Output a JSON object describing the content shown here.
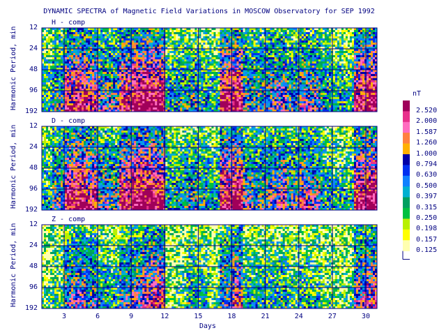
{
  "title": "DYNAMIC SPECTRA of Magnetic Field Variations in MOSCOW Observatory for SEP 1992",
  "chart_data": {
    "type": "heatmap",
    "xlabel": "Days",
    "ylabel": "Harmonic Period, min",
    "x_ticks": [
      "3",
      "6",
      "9",
      "12",
      "15",
      "18",
      "21",
      "24",
      "27",
      "30"
    ],
    "x_tick_values": [
      3,
      6,
      9,
      12,
      15,
      18,
      21,
      24,
      27,
      30
    ],
    "xlim": [
      1,
      31
    ],
    "y_ticks": [
      "12",
      "24",
      "48",
      "96",
      "192"
    ],
    "y_tick_values": [
      12,
      24,
      48,
      96,
      192
    ],
    "ylim": [
      12,
      192
    ],
    "y_scale": "log",
    "grid": true,
    "panels": [
      {
        "label": "H - comp"
      },
      {
        "label": "D - comp"
      },
      {
        "label": "Z - comp"
      }
    ],
    "colorbar": {
      "unit": "nT",
      "levels": [
        "2.520",
        "2.000",
        "1.587",
        "1.260",
        "1.000",
        "0.794",
        "0.630",
        "0.500",
        "0.397",
        "0.315",
        "0.250",
        "0.198",
        "0.157",
        "0.125"
      ],
      "colors": [
        "#a0005a",
        "#e8308c",
        "#ff6cc0",
        "#ff8040",
        "#ffb000",
        "#0000a8",
        "#0030f0",
        "#1080ff",
        "#00b0d0",
        "#00a060",
        "#00c040",
        "#b8f000",
        "#ffff00",
        "#ffffb0"
      ]
    },
    "day_activity": {
      "H - comp": [
        0.3,
        0.45,
        0.8,
        0.85,
        0.75,
        0.55,
        0.5,
        0.8,
        0.9,
        0.95,
        0.9,
        0.35,
        0.4,
        0.45,
        0.35,
        0.3,
        0.85,
        0.9,
        0.5,
        0.5,
        0.55,
        0.6,
        0.45,
        0.6,
        0.55,
        0.4,
        0.35,
        0.3,
        0.85,
        0.9,
        0.7
      ],
      "D - comp": [
        0.3,
        0.5,
        0.85,
        0.9,
        0.8,
        0.55,
        0.5,
        0.85,
        0.95,
        0.95,
        0.9,
        0.35,
        0.4,
        0.45,
        0.4,
        0.35,
        0.85,
        0.95,
        0.55,
        0.5,
        0.55,
        0.65,
        0.5,
        0.65,
        0.55,
        0.35,
        0.3,
        0.3,
        0.85,
        0.95,
        0.7
      ],
      "Z - comp": [
        0.15,
        0.25,
        0.55,
        0.6,
        0.5,
        0.35,
        0.3,
        0.5,
        0.55,
        0.7,
        0.75,
        0.15,
        0.2,
        0.35,
        0.3,
        0.2,
        0.55,
        0.7,
        0.3,
        0.3,
        0.3,
        0.35,
        0.25,
        0.3,
        0.3,
        0.2,
        0.15,
        0.2,
        0.6,
        0.7,
        0.5
      ]
    }
  }
}
